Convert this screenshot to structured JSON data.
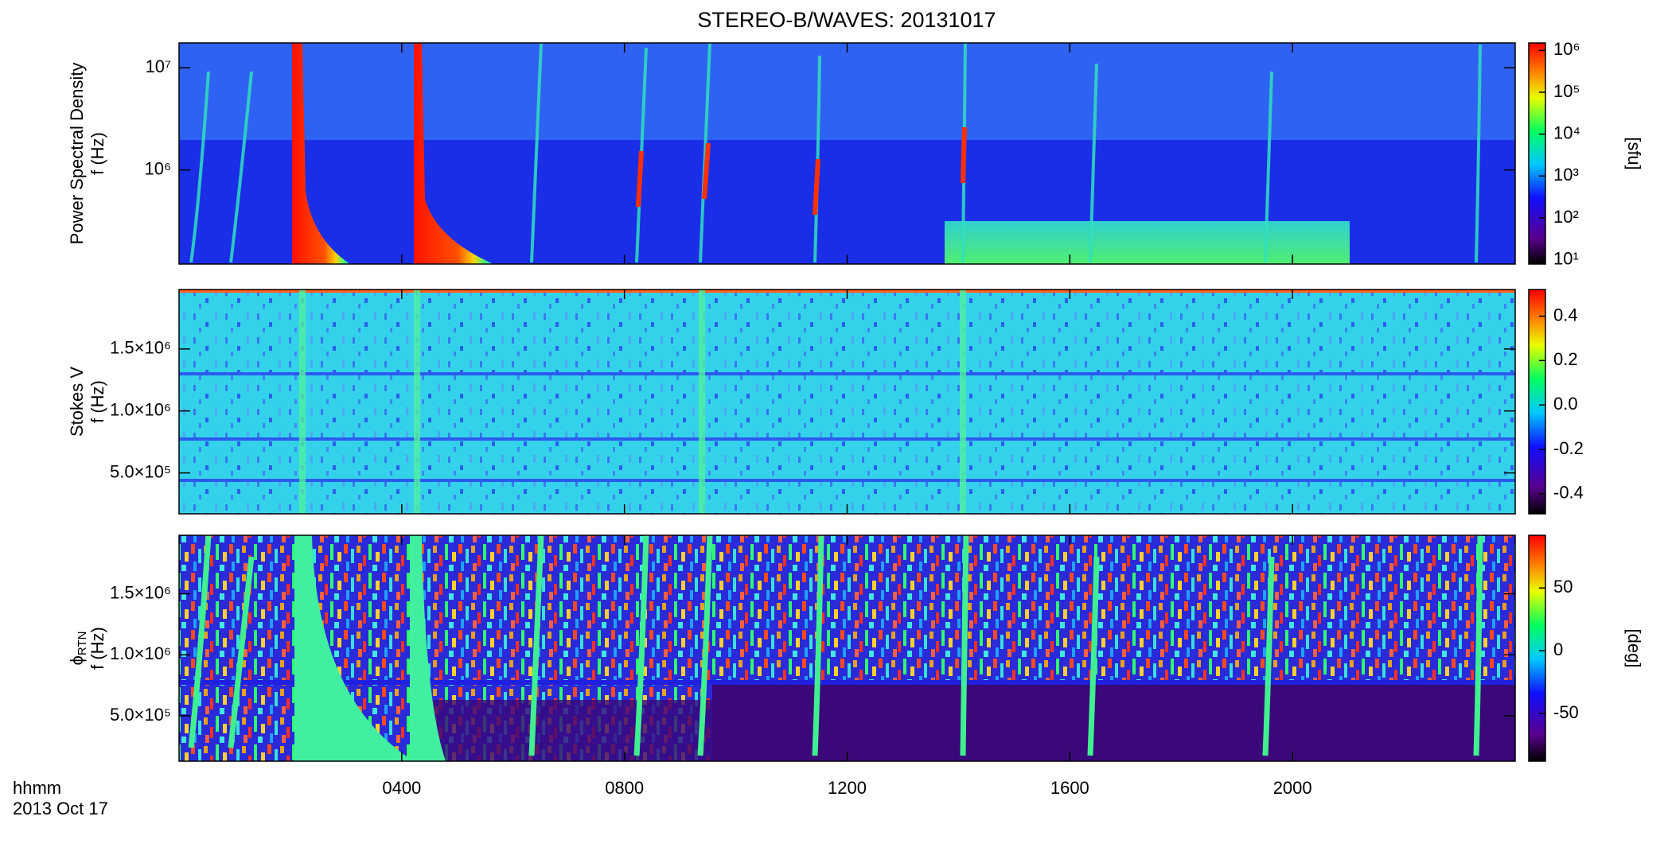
{
  "title": "STEREO-B/WAVES: 20131017",
  "xlabel": [
    "hhmm",
    "2013 Oct 17"
  ],
  "chart_data": [
    {
      "type": "heatmap",
      "ylabel": [
        "Power Spectral Density",
        "f (Hz)"
      ],
      "log_scale": true,
      "ylim": [
        120000,
        17500000
      ],
      "yticks": [
        {
          "value": 1000000,
          "label": "10⁶"
        },
        {
          "value": 10000000,
          "label": "10⁷"
        }
      ],
      "colorbar": {
        "label": "[sfu]",
        "log_scale": true,
        "clim": [
          7.9,
          1500000
        ],
        "cticks": [
          {
            "value": 10,
            "label": "10¹"
          },
          {
            "value": 100,
            "label": "10²"
          },
          {
            "value": 1000,
            "label": "10³"
          },
          {
            "value": 10000,
            "label": "10⁴"
          },
          {
            "value": 100000,
            "label": "10⁵"
          },
          {
            "value": 1000000,
            "label": "10⁶"
          }
        ]
      }
    },
    {
      "type": "heatmap",
      "ylabel": [
        "Stokes V",
        "f (Hz)"
      ],
      "log_scale": false,
      "ylim": [
        170000,
        1980000
      ],
      "yticks": [
        {
          "value": 500000,
          "label": "5.0×10⁵"
        },
        {
          "value": 1000000,
          "label": "1.0×10⁶"
        },
        {
          "value": 1500000,
          "label": "1.5×10⁶"
        }
      ],
      "colorbar": {
        "log_scale": false,
        "clim": [
          -0.49,
          0.52
        ],
        "cticks": [
          0.4,
          0.2,
          {
            "value": 0,
            "label": "0.0"
          },
          -0.2,
          -0.4
        ]
      }
    },
    {
      "type": "heatmap",
      "ylabel": [
        "ϕ",
        "f (Hz)"
      ],
      "ylabel_sub": "RTN",
      "log_scale": false,
      "ylim": [
        128000,
        1980000
      ],
      "yticks": [
        {
          "value": 500000,
          "label": "5.0×10⁵"
        },
        {
          "value": 1000000,
          "label": "1.0×10⁶"
        },
        {
          "value": 1500000,
          "label": "1.5×10⁶"
        }
      ],
      "xlim": [
        0,
        24
      ],
      "xticks": [
        {
          "value": 4,
          "label": "0400"
        },
        {
          "value": 8,
          "label": "0800"
        },
        {
          "value": 12,
          "label": "1200"
        },
        {
          "value": 16,
          "label": "1600"
        },
        {
          "value": 20,
          "label": "2000"
        }
      ],
      "colorbar": {
        "label": "[deg]",
        "log_scale": false,
        "clim": [
          -88,
          92
        ],
        "cticks": [
          50,
          0,
          -50
        ]
      }
    }
  ]
}
